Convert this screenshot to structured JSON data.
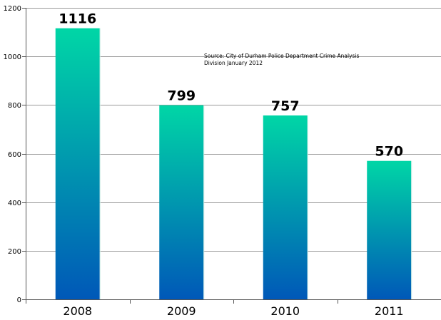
{
  "chart_data": {
    "type": "bar",
    "categories": [
      "2008",
      "2009",
      "2010",
      "2011"
    ],
    "values": [
      1116,
      799,
      757,
      570
    ],
    "data_labels": [
      "1116",
      "799",
      "757",
      "570"
    ],
    "ylim": [
      0,
      1200
    ],
    "yticks": [
      0,
      200,
      400,
      600,
      800,
      1000,
      1200
    ],
    "ytick_labels": [
      "0",
      "200",
      "400",
      "600",
      "800",
      "1000",
      "1200"
    ],
    "grid": true,
    "legend": "none",
    "annotation": [
      "Source: City of Durham Police Department Crime Analysis",
      "Division January 2012"
    ],
    "colors": {
      "bar_top": "#00d6a6",
      "bar_bottom": "#0058b8",
      "grid": "#9a9a9a",
      "axis": "#555555"
    }
  }
}
